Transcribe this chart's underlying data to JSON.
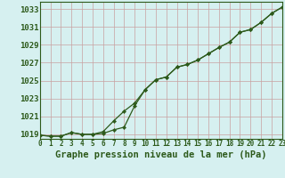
{
  "xlabel": "Graphe pression niveau de la mer (hPa)",
  "background_color": "#d6f0f0",
  "grid_color": "#c8a0a0",
  "line_color": "#2d5a1b",
  "marker_color": "#2d5a1b",
  "x_hours": [
    0,
    1,
    2,
    3,
    4,
    5,
    6,
    7,
    8,
    9,
    10,
    11,
    12,
    13,
    14,
    15,
    16,
    17,
    18,
    19,
    20,
    21,
    22,
    23
  ],
  "y_line1": [
    1018.9,
    1018.8,
    1018.8,
    1019.2,
    1019.0,
    1019.0,
    1019.1,
    1019.5,
    1019.8,
    1022.2,
    1024.0,
    1025.1,
    1025.4,
    1026.5,
    1026.8,
    1027.3,
    1028.0,
    1028.7,
    1029.3,
    1030.4,
    1030.7,
    1031.5,
    1032.5,
    1033.2
  ],
  "y_line2": [
    1018.9,
    1018.8,
    1018.8,
    1019.2,
    1019.0,
    1019.0,
    1019.3,
    1020.5,
    1021.6,
    1022.5,
    1024.0,
    1025.1,
    1025.4,
    1026.5,
    1026.8,
    1027.3,
    1028.0,
    1028.7,
    1029.3,
    1030.4,
    1030.7,
    1031.5,
    1032.5,
    1033.2
  ],
  "ylim": [
    1018.5,
    1033.8
  ],
  "yticks": [
    1019,
    1021,
    1023,
    1025,
    1027,
    1029,
    1031,
    1033
  ],
  "xlim": [
    0,
    23
  ],
  "xticks": [
    0,
    1,
    2,
    3,
    4,
    5,
    6,
    7,
    8,
    9,
    10,
    11,
    12,
    13,
    14,
    15,
    16,
    17,
    18,
    19,
    20,
    21,
    22,
    23
  ],
  "xlabel_fontsize": 7.5,
  "ytick_fontsize": 6.5,
  "xtick_fontsize": 5.5
}
